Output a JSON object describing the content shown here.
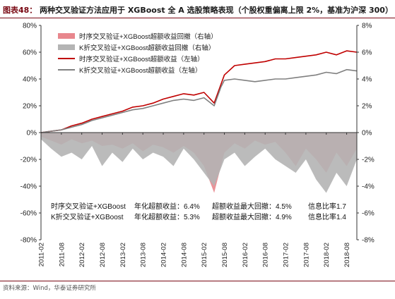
{
  "figure": {
    "number": "图表48：",
    "title": "两种交叉验证方法应用于 XGBoost 全 A 选股策略表现（个股权重偏离上限 2%，基准为沪深 300）",
    "source": "资料来源：Wind，华泰证券研究所"
  },
  "chart_data": {
    "type": "line",
    "title": "",
    "left_axis": {
      "min": -80,
      "max": 80,
      "step": 20,
      "unit": "%"
    },
    "right_axis": {
      "min": -8,
      "max": 8,
      "step": 2,
      "unit": "%"
    },
    "x_ticks": [
      "2011-02",
      "2011-08",
      "2012-02",
      "2012-08",
      "2013-02",
      "2013-08",
      "2014-02",
      "2014-08",
      "2015-02",
      "2015-08",
      "2016-02",
      "2016-08",
      "2017-02",
      "2017-08",
      "2018-02",
      "2018-08"
    ],
    "grid": false,
    "legend_position": "top-left",
    "colors": {
      "ts_line": "#c00000",
      "kf_line": "#808080",
      "ts_drawdown": "#e8878d",
      "kf_drawdown": "#b4b4b4"
    },
    "series": [
      {
        "name": "时序交叉验证+XGBoost超额收益回撤（右轴）",
        "kind": "area",
        "axis": "right",
        "color": "#e8878d",
        "x": [
          "2011-02",
          "2011-05",
          "2011-08",
          "2011-11",
          "2012-02",
          "2012-05",
          "2012-08",
          "2012-11",
          "2013-02",
          "2013-05",
          "2013-08",
          "2013-11",
          "2014-02",
          "2014-05",
          "2014-08",
          "2014-11",
          "2015-02",
          "2015-05",
          "2015-08",
          "2015-11",
          "2016-02",
          "2016-05",
          "2016-08",
          "2016-11",
          "2017-02",
          "2017-05",
          "2017-08",
          "2017-11",
          "2018-02",
          "2018-05",
          "2018-08",
          "2018-11"
        ],
        "y": [
          -0.3,
          -0.6,
          -0.9,
          -0.5,
          -0.8,
          -0.6,
          -1.0,
          -0.9,
          -1.2,
          -0.8,
          -1.4,
          -0.9,
          -1.1,
          -1.5,
          -1.0,
          -1.5,
          -2.5,
          -4.5,
          -1.5,
          -0.8,
          -1.2,
          -0.6,
          -0.9,
          -0.7,
          -1.5,
          -2.5,
          -1.2,
          -2.0,
          -3.0,
          -1.5,
          -2.5,
          -1.2
        ]
      },
      {
        "name": "K折交叉验证+XGBoost超额收益回撤（右轴）",
        "kind": "area",
        "axis": "right",
        "color": "#b4b4b4",
        "x": [
          "2011-02",
          "2011-05",
          "2011-08",
          "2011-11",
          "2012-02",
          "2012-05",
          "2012-08",
          "2012-11",
          "2013-02",
          "2013-05",
          "2013-08",
          "2013-11",
          "2014-02",
          "2014-05",
          "2014-08",
          "2014-11",
          "2015-02",
          "2015-05",
          "2015-08",
          "2015-11",
          "2016-02",
          "2016-05",
          "2016-08",
          "2016-11",
          "2017-02",
          "2017-05",
          "2017-08",
          "2017-11",
          "2018-02",
          "2018-05",
          "2018-08",
          "2018-11"
        ],
        "y": [
          -0.5,
          -1.2,
          -1.8,
          -1.5,
          -2.0,
          -1.0,
          -2.5,
          -1.5,
          -2.2,
          -1.2,
          -2.0,
          -1.5,
          -1.8,
          -2.5,
          -1.2,
          -2.0,
          -3.0,
          -4.0,
          -2.0,
          -1.5,
          -2.5,
          -1.8,
          -1.2,
          -2.0,
          -2.5,
          -3.0,
          -2.0,
          -3.5,
          -4.5,
          -3.0,
          -4.0,
          -2.0
        ]
      },
      {
        "name": "时序交叉验证+XGBoost超额收益（左轴）",
        "kind": "line",
        "axis": "left",
        "color": "#c00000",
        "x": [
          "2011-02",
          "2011-05",
          "2011-08",
          "2011-11",
          "2012-02",
          "2012-05",
          "2012-08",
          "2012-11",
          "2013-02",
          "2013-05",
          "2013-08",
          "2013-11",
          "2014-02",
          "2014-05",
          "2014-08",
          "2014-11",
          "2015-02",
          "2015-05",
          "2015-07",
          "2015-08",
          "2015-11",
          "2016-02",
          "2016-05",
          "2016-08",
          "2016-11",
          "2017-02",
          "2017-05",
          "2017-08",
          "2017-11",
          "2018-02",
          "2018-05",
          "2018-08",
          "2018-11"
        ],
        "y": [
          0,
          1,
          2,
          5,
          7,
          10,
          12,
          14,
          16,
          19,
          20,
          22,
          25,
          27,
          29,
          28,
          30,
          22,
          36,
          43,
          50,
          51,
          52,
          53,
          55,
          55,
          56,
          57,
          58,
          60,
          58,
          61,
          60
        ]
      },
      {
        "name": "K折交叉验证+XGBoost超额收益（左轴）",
        "kind": "line",
        "axis": "left",
        "color": "#808080",
        "x": [
          "2011-02",
          "2011-05",
          "2011-08",
          "2011-11",
          "2012-02",
          "2012-05",
          "2012-08",
          "2012-11",
          "2013-02",
          "2013-05",
          "2013-08",
          "2013-11",
          "2014-02",
          "2014-05",
          "2014-08",
          "2014-11",
          "2015-02",
          "2015-05",
          "2015-07",
          "2015-08",
          "2015-11",
          "2016-02",
          "2016-05",
          "2016-08",
          "2016-11",
          "2017-02",
          "2017-05",
          "2017-08",
          "2017-11",
          "2018-02",
          "2018-05",
          "2018-08",
          "2018-11"
        ],
        "y": [
          0,
          1,
          2,
          4,
          6,
          9,
          11,
          13,
          15,
          17,
          18,
          20,
          22,
          24,
          25,
          24,
          26,
          20,
          34,
          39,
          40,
          39,
          38,
          39,
          40,
          40,
          41,
          42,
          43,
          45,
          44,
          47,
          46
        ]
      }
    ],
    "stats_table": {
      "rows": [
        [
          "时序交叉验证+XGBoost",
          "年化超额收益：6.4%",
          "超额收益最大回撤：4.5%",
          "信息比率1.7"
        ],
        [
          "K折交叉验证+XGBoost",
          "年化超额收益：5.3%",
          "超额收益最大回撤：4.9%",
          "信息比率1.4"
        ]
      ]
    }
  }
}
